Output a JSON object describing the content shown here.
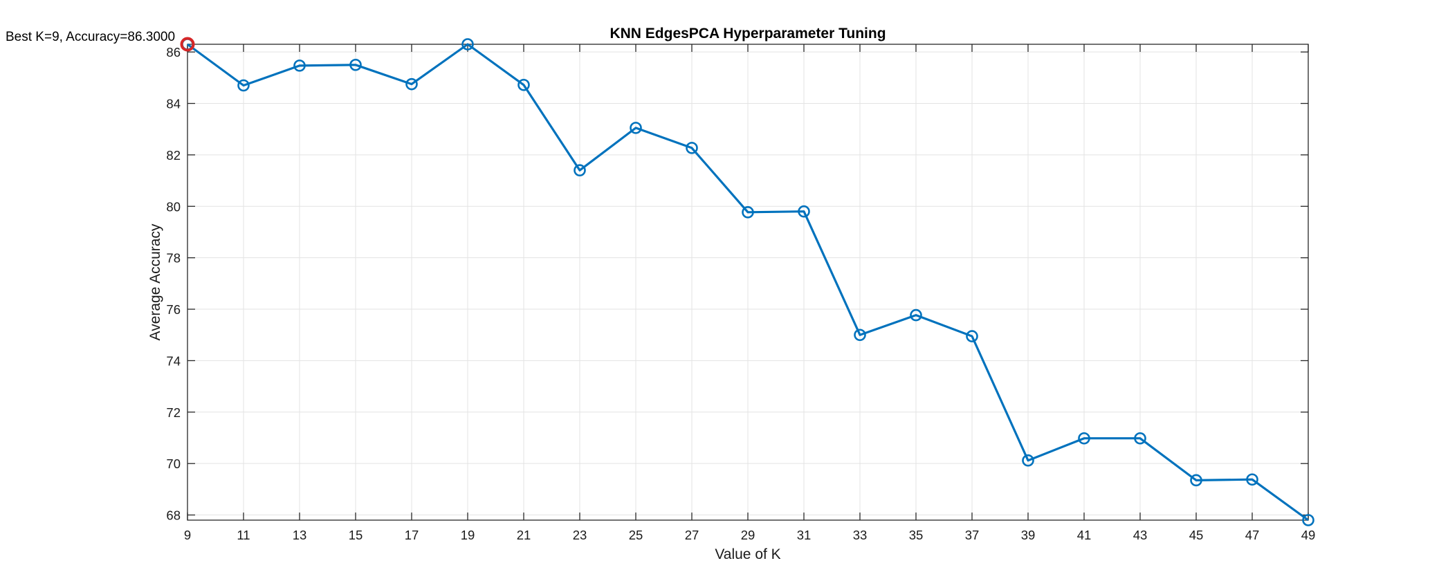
{
  "chart_data": {
    "type": "line",
    "title": "KNN EdgesPCA Hyperparameter Tuning",
    "xlabel": "Value of K",
    "ylabel": "Average Accuracy",
    "xlim": [
      9,
      49
    ],
    "ylim": [
      67.8,
      86.3
    ],
    "xticks": [
      9,
      11,
      13,
      15,
      17,
      19,
      21,
      23,
      25,
      27,
      29,
      31,
      33,
      35,
      37,
      39,
      41,
      43,
      45,
      47,
      49
    ],
    "yticks": [
      68,
      70,
      72,
      74,
      76,
      78,
      80,
      82,
      84,
      86
    ],
    "grid": true,
    "series": [
      {
        "color": "#0072BD",
        "marker": "circle",
        "x": [
          9,
          11,
          13,
          15,
          17,
          19,
          21,
          23,
          25,
          27,
          29,
          31,
          33,
          35,
          37,
          39,
          41,
          43,
          45,
          47,
          49
        ],
        "y": [
          86.3,
          84.7,
          85.47,
          85.5,
          84.75,
          86.3,
          84.72,
          81.4,
          83.05,
          82.27,
          79.77,
          79.8,
          75.0,
          75.77,
          74.95,
          70.12,
          70.98,
          70.98,
          69.35,
          69.38,
          67.8
        ]
      }
    ],
    "best_point": {
      "x": 9,
      "y": 86.3,
      "color": "#D62728"
    },
    "annotation": "Best K=9, Accuracy=86.3000"
  }
}
